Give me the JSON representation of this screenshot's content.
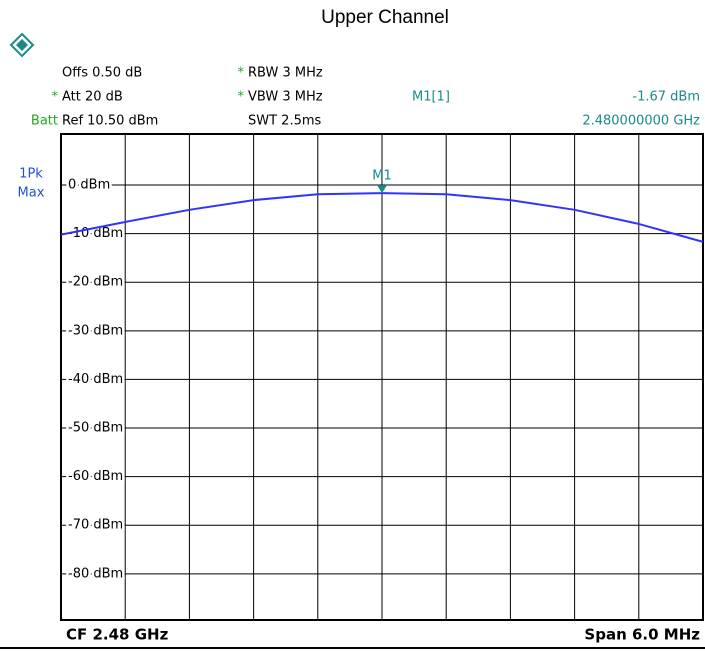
{
  "chart_data": {
    "type": "line",
    "title": "Upper Channel",
    "settings": [
      {
        "text": "Offs 0.50 dB"
      },
      {
        "flag": "*",
        "text": "RBW 3 MHz"
      },
      {
        "flag": "*",
        "text": "Att 20 dB"
      },
      {
        "flag": "*",
        "text": "VBW 3 MHz"
      },
      {
        "flag": "Batt",
        "text": "Ref 10.50 dBm"
      },
      {
        "text": "SWT 2.5ms"
      }
    ],
    "trace_label": [
      "1Pk",
      "Max"
    ],
    "marker": {
      "name": "M1",
      "readout": "M1[1]",
      "x": 2.48,
      "y": -1.67,
      "y_label": "-1.67 dBm",
      "x_label": "2.480000000 GHz"
    },
    "x": [
      2.477,
      2.4776,
      2.4782,
      2.4788,
      2.4794,
      2.48,
      2.4806,
      2.4812,
      2.4818,
      2.4824,
      2.483
    ],
    "values": [
      -10.2,
      -7.6,
      -5.1,
      -3.1,
      -1.9,
      -1.67,
      -1.9,
      -3.1,
      -5.1,
      -8.0,
      -11.7
    ],
    "color": "#3333ff",
    "xlim": [
      2.477,
      2.483
    ],
    "ylim": [
      -89.5,
      10.5
    ],
    "yticks": [
      {
        "value": 0,
        "label": "0 dBm"
      },
      {
        "value": -10,
        "label": "-10 dBm"
      },
      {
        "value": -20,
        "label": "-20 dBm"
      },
      {
        "value": -30,
        "label": "-30 dBm"
      },
      {
        "value": -40,
        "label": "-40 dBm"
      },
      {
        "value": -50,
        "label": "-50 dBm"
      },
      {
        "value": -60,
        "label": "-60 dBm"
      },
      {
        "value": -70,
        "label": "-70 dBm"
      },
      {
        "value": -80,
        "label": "-80 dBm"
      }
    ],
    "grid": true,
    "footer_left": "CF 2.48 GHz",
    "footer_right": "Span 6.0 MHz"
  }
}
